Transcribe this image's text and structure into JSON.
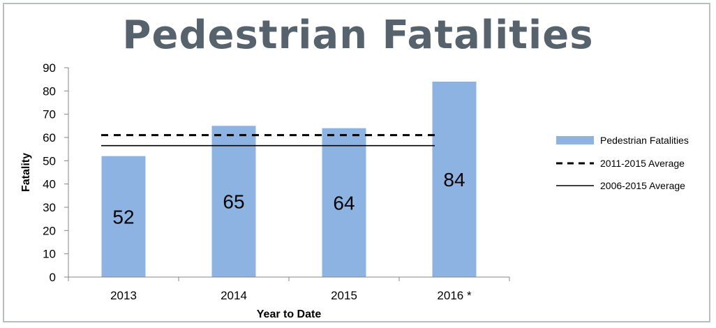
{
  "chart_data": {
    "type": "bar",
    "title": "Pedestrian Fatalities",
    "xlabel": "Year to Date",
    "ylabel": "Fatality",
    "categories": [
      "2013",
      "2014",
      "2015",
      "2016 *"
    ],
    "series": [
      {
        "name": "Pedestrian Fatalities",
        "values": [
          52,
          65,
          64,
          84
        ],
        "color": "#8db3e2"
      }
    ],
    "reference_lines": [
      {
        "name": "2011-2015 Average",
        "value": 61,
        "style": "dashed",
        "color": "#000000"
      },
      {
        "name": "2006-2015 Average",
        "value": 56.5,
        "style": "solid",
        "color": "#000000"
      }
    ],
    "data_labels": [
      "52",
      "65",
      "64",
      "84"
    ],
    "ylim": [
      0,
      90
    ],
    "yticks": [
      0,
      10,
      20,
      30,
      40,
      50,
      60,
      70,
      80,
      90
    ],
    "grid": false,
    "legend_position": "right"
  }
}
